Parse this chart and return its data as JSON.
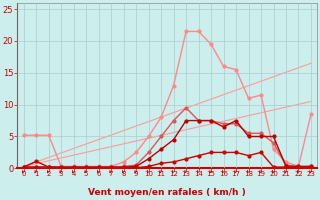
{
  "xlabel": "Vent moyen/en rafales ( km/h )",
  "bg_color": "#cceeed",
  "grid_color": "#aacccc",
  "xlim": [
    -0.5,
    23.5
  ],
  "ylim": [
    0,
    26
  ],
  "yticks": [
    0,
    5,
    10,
    15,
    20,
    25
  ],
  "xticks": [
    0,
    1,
    2,
    3,
    4,
    5,
    6,
    7,
    8,
    9,
    10,
    11,
    12,
    13,
    14,
    15,
    16,
    17,
    18,
    19,
    20,
    21,
    22,
    23
  ],
  "series": [
    {
      "x": [
        0,
        23
      ],
      "y": [
        0.3,
        16.5
      ],
      "color": "#ff9999",
      "marker": null,
      "linewidth": 0.8
    },
    {
      "x": [
        0,
        23
      ],
      "y": [
        0.3,
        10.5
      ],
      "color": "#ff9999",
      "marker": null,
      "linewidth": 0.8
    },
    {
      "x": [
        0,
        1,
        2,
        3,
        4,
        5,
        6,
        7,
        8,
        9,
        10,
        11,
        12,
        13,
        14,
        15,
        16,
        17,
        18,
        19,
        20,
        21,
        22,
        23
      ],
      "y": [
        5.2,
        5.2,
        5.2,
        0.3,
        0.3,
        0.3,
        0.3,
        0.3,
        1.0,
        2.5,
        5.0,
        8.0,
        13.0,
        21.5,
        21.5,
        19.5,
        16.0,
        15.5,
        11.0,
        11.5,
        3.0,
        1.0,
        0.3,
        8.5
      ],
      "color": "#ff8888",
      "marker": "o",
      "markersize": 2,
      "linewidth": 1.0
    },
    {
      "x": [
        0,
        1,
        2,
        3,
        4,
        5,
        6,
        7,
        8,
        9,
        10,
        11,
        12,
        13,
        14,
        15,
        16,
        17,
        18,
        19,
        20,
        21,
        22,
        23
      ],
      "y": [
        0.2,
        0.2,
        0.2,
        0.2,
        0.2,
        0.2,
        0.2,
        0.2,
        0.3,
        0.5,
        2.5,
        5.0,
        7.5,
        9.5,
        7.5,
        7.5,
        7.0,
        7.0,
        5.5,
        5.5,
        4.0,
        0.5,
        0.3,
        0.3
      ],
      "color": "#dd5555",
      "marker": "o",
      "markersize": 2,
      "linewidth": 1.0
    },
    {
      "x": [
        0,
        1,
        2,
        3,
        4,
        5,
        6,
        7,
        8,
        9,
        10,
        11,
        12,
        13,
        14,
        15,
        16,
        17,
        18,
        19,
        20,
        21,
        22,
        23
      ],
      "y": [
        0.2,
        0.2,
        0.2,
        0.2,
        0.2,
        0.2,
        0.2,
        0.2,
        0.2,
        0.3,
        1.5,
        3.0,
        4.5,
        7.5,
        7.5,
        7.5,
        6.5,
        7.5,
        5.0,
        5.0,
        5.0,
        0.3,
        0.3,
        0.3
      ],
      "color": "#bb0000",
      "marker": "o",
      "markersize": 2,
      "linewidth": 1.0
    },
    {
      "x": [
        0,
        1,
        2,
        3,
        4,
        5,
        6,
        7,
        8,
        9,
        10,
        11,
        12,
        13,
        14,
        15,
        16,
        17,
        18,
        19,
        20,
        21,
        22,
        23
      ],
      "y": [
        0.2,
        1.1,
        0.2,
        0.1,
        0.1,
        0.1,
        0.1,
        0.1,
        0.1,
        0.1,
        0.3,
        0.8,
        1.0,
        1.5,
        2.0,
        2.5,
        2.5,
        2.5,
        2.0,
        2.5,
        0.2,
        0.2,
        0.2,
        0.2
      ],
      "color": "#cc0000",
      "marker": "o",
      "markersize": 2,
      "linewidth": 1.0
    }
  ],
  "arrow_color": "#cc0000",
  "tick_color": "#cc0000",
  "xlabel_color": "#cc0000",
  "xlabel_fontsize": 6.5,
  "tick_fontsize_x": 5,
  "tick_fontsize_y": 6
}
